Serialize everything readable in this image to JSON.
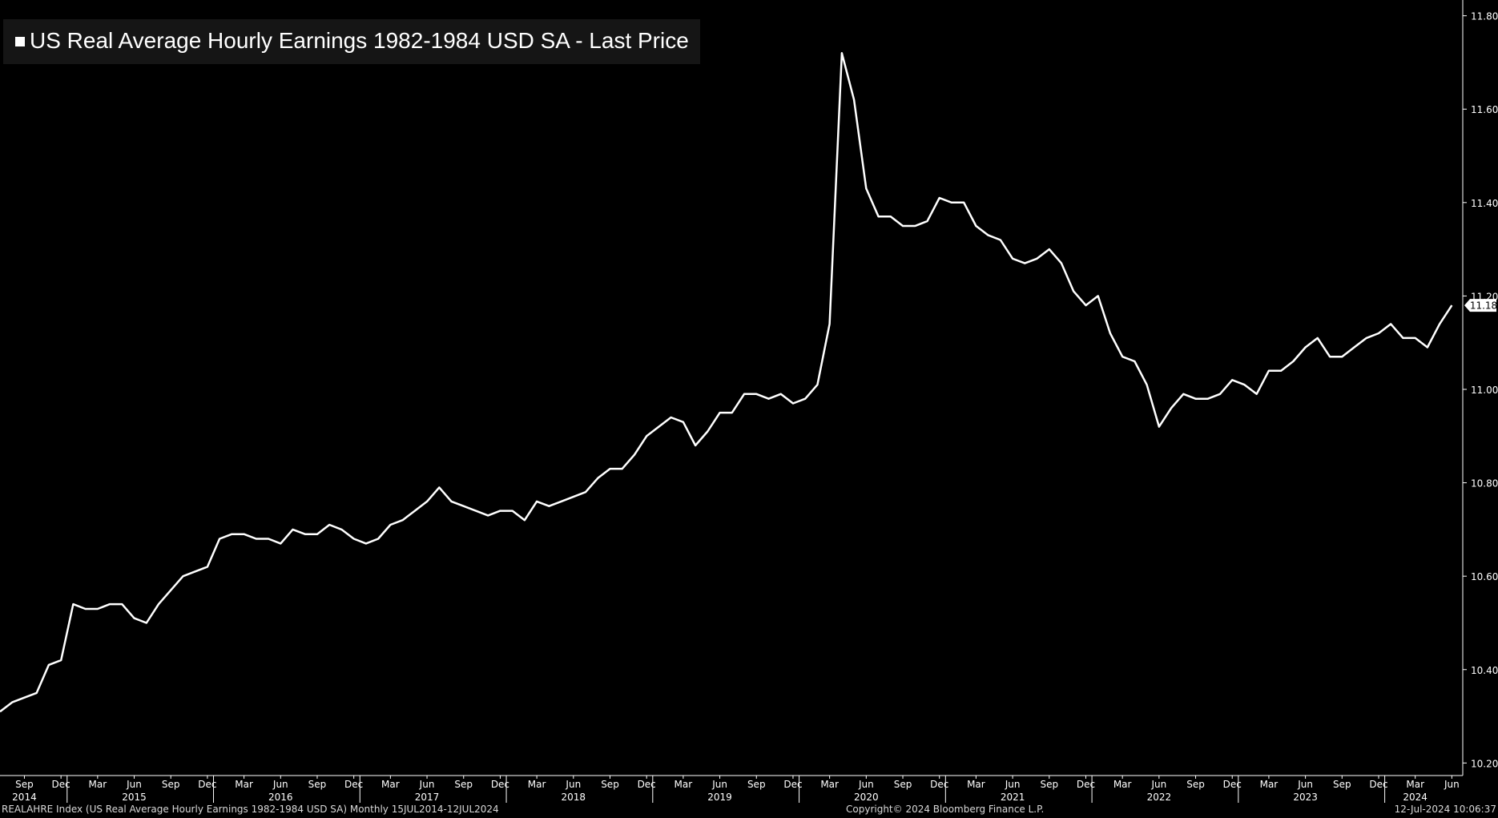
{
  "chart_data": {
    "type": "line",
    "title": "US Real Average Hourly Earnings 1982-1984 USD SA - Last Price",
    "series": [
      {
        "name": "US Real Average Hourly Earnings 1982-1984 USD SA - Last Price",
        "color": "#ffffff",
        "start": "2014-07",
        "frequency": "monthly",
        "values": [
          10.31,
          10.33,
          10.34,
          10.35,
          10.41,
          10.42,
          10.54,
          10.53,
          10.53,
          10.54,
          10.54,
          10.51,
          10.5,
          10.54,
          10.57,
          10.6,
          10.61,
          10.62,
          10.68,
          10.69,
          10.69,
          10.68,
          10.68,
          10.67,
          10.7,
          10.69,
          10.69,
          10.71,
          10.7,
          10.68,
          10.67,
          10.68,
          10.71,
          10.72,
          10.74,
          10.76,
          10.79,
          10.76,
          10.75,
          10.74,
          10.73,
          10.74,
          10.74,
          10.72,
          10.76,
          10.75,
          10.76,
          10.77,
          10.78,
          10.81,
          10.83,
          10.83,
          10.86,
          10.9,
          10.92,
          10.94,
          10.93,
          10.88,
          10.91,
          10.95,
          10.95,
          10.99,
          10.99,
          10.98,
          10.99,
          10.97,
          10.98,
          11.01,
          11.14,
          11.72,
          11.62,
          11.43,
          11.37,
          11.37,
          11.35,
          11.35,
          11.36,
          11.41,
          11.4,
          11.4,
          11.35,
          11.33,
          11.32,
          11.28,
          11.27,
          11.28,
          11.3,
          11.27,
          11.21,
          11.18,
          11.2,
          11.12,
          11.07,
          11.06,
          11.01,
          10.92,
          10.96,
          10.99,
          10.98,
          10.98,
          10.99,
          11.02,
          11.01,
          10.99,
          11.04,
          11.04,
          11.06,
          11.09,
          11.11,
          11.07,
          11.07,
          11.09,
          11.11,
          11.12,
          11.14,
          11.11,
          11.11,
          11.09,
          11.14,
          11.18
        ]
      }
    ],
    "last_value_label": "11.18",
    "y_ticks": [
      "10.20",
      "10.40",
      "10.60",
      "10.80",
      "11.00",
      "11.20",
      "11.40",
      "11.60",
      "11.80"
    ],
    "ylim": [
      10.18,
      11.82
    ],
    "x_ticks": [
      {
        "month": "Sep",
        "year": "2014",
        "date": "2014-09"
      },
      {
        "month": "Dec",
        "date": "2014-12"
      },
      {
        "month": "Mar",
        "date": "2015-03"
      },
      {
        "month": "Jun",
        "year": "2015",
        "date": "2015-06"
      },
      {
        "month": "Sep",
        "date": "2015-09"
      },
      {
        "month": "Dec",
        "date": "2015-12"
      },
      {
        "month": "Mar",
        "date": "2016-03"
      },
      {
        "month": "Jun",
        "year": "2016",
        "date": "2016-06"
      },
      {
        "month": "Sep",
        "date": "2016-09"
      },
      {
        "month": "Dec",
        "date": "2016-12"
      },
      {
        "month": "Mar",
        "date": "2017-03"
      },
      {
        "month": "Jun",
        "year": "2017",
        "date": "2017-06"
      },
      {
        "month": "Sep",
        "date": "2017-09"
      },
      {
        "month": "Dec",
        "date": "2017-12"
      },
      {
        "month": "Mar",
        "date": "2018-03"
      },
      {
        "month": "Jun",
        "year": "2018",
        "date": "2018-06"
      },
      {
        "month": "Sep",
        "date": "2018-09"
      },
      {
        "month": "Dec",
        "date": "2018-12"
      },
      {
        "month": "Mar",
        "date": "2019-03"
      },
      {
        "month": "Jun",
        "year": "2019",
        "date": "2019-06"
      },
      {
        "month": "Sep",
        "date": "2019-09"
      },
      {
        "month": "Dec",
        "date": "2019-12"
      },
      {
        "month": "Mar",
        "date": "2020-03"
      },
      {
        "month": "Jun",
        "year": "2020",
        "date": "2020-06"
      },
      {
        "month": "Sep",
        "date": "2020-09"
      },
      {
        "month": "Dec",
        "date": "2020-12"
      },
      {
        "month": "Mar",
        "date": "2021-03"
      },
      {
        "month": "Jun",
        "year": "2021",
        "date": "2021-06"
      },
      {
        "month": "Sep",
        "date": "2021-09"
      },
      {
        "month": "Dec",
        "date": "2021-12"
      },
      {
        "month": "Mar",
        "date": "2022-03"
      },
      {
        "month": "Jun",
        "year": "2022",
        "date": "2022-06"
      },
      {
        "month": "Sep",
        "date": "2022-09"
      },
      {
        "month": "Dec",
        "date": "2022-12"
      },
      {
        "month": "Mar",
        "date": "2023-03"
      },
      {
        "month": "Jun",
        "year": "2023",
        "date": "2023-06"
      },
      {
        "month": "Sep",
        "date": "2023-09"
      },
      {
        "month": "Dec",
        "date": "2023-12"
      },
      {
        "month": "Mar",
        "year": "2024",
        "date": "2024-03"
      },
      {
        "month": "Jun",
        "date": "2024-06"
      }
    ],
    "year_separators": [
      "2015-01",
      "2016-01",
      "2017-01",
      "2018-01",
      "2019-01",
      "2020-01",
      "2021-01",
      "2022-01",
      "2023-01",
      "2024-01"
    ],
    "grid": false,
    "legend": "top-left",
    "background": "#000000",
    "axis_color": "#ffffff"
  },
  "footer": {
    "left": "REALAHRE Index (US Real Average Hourly Earnings 1982-1984 USD SA)  Monthly 15JUL2014-12JUL2024",
    "center": "Copyright© 2024 Bloomberg Finance L.P.",
    "right": "12-Jul-2024 10:06:37"
  }
}
